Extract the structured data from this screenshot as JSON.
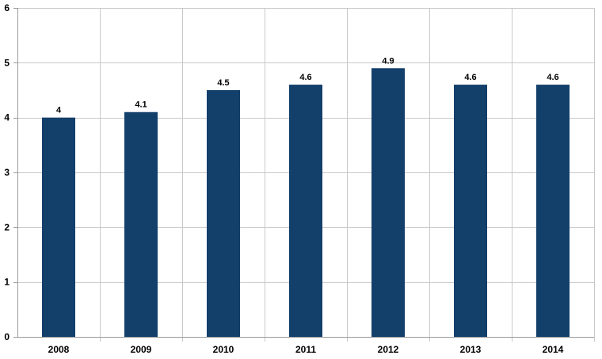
{
  "chart_data": {
    "type": "bar",
    "categories": [
      "2008",
      "2009",
      "2010",
      "2011",
      "2012",
      "2013",
      "2014"
    ],
    "series": [
      {
        "values": [
          4,
          4.1,
          4.5,
          4.6,
          4.9,
          4.6,
          4.6
        ],
        "color": "#133f6b"
      }
    ],
    "data_labels": [
      "4",
      "4.1",
      "4.5",
      "4.6",
      "4.9",
      "4.6",
      "4.6"
    ],
    "ylim": [
      0,
      6
    ],
    "yticks": [
      "0",
      "1",
      "2",
      "3",
      "4",
      "5",
      "6"
    ],
    "grid": true,
    "legend": "none",
    "title": "",
    "xlabel": "",
    "ylabel": ""
  }
}
